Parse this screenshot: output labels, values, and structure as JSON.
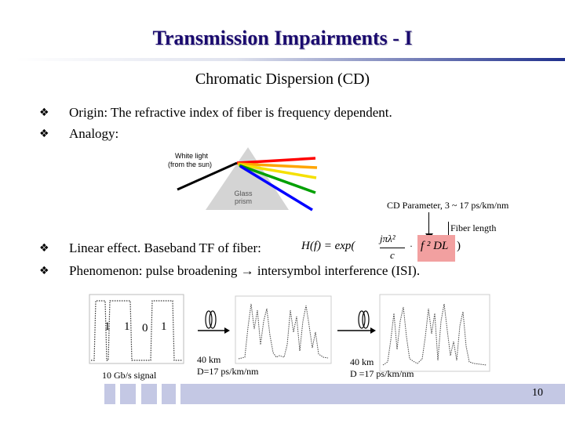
{
  "slide": {
    "title": "Transmission Impairments - I",
    "subtitle": "Chromatic Dispersion (CD)",
    "bullets": [
      "Origin: The refractive index of fiber is frequency dependent.",
      "Analogy:",
      "Linear effect. Baseband TF of fiber:",
      "Phenomenon: pulse broadening → intersymbol interference (ISI)."
    ],
    "bullet_icon": "diamond-bullet-icon",
    "page_number": "10"
  },
  "prism_figure": {
    "label_top": "White light",
    "label_top2": "(from the sun)",
    "prism_label": "Glass",
    "prism_label2": "prism",
    "ray_colors": [
      "#ff0000",
      "#ffa500",
      "#ffff00",
      "#00a000",
      "#0000ff"
    ]
  },
  "formula": {
    "cd_parameter_label": "CD Parameter, 3 ~ 17 ps/km/nm",
    "fiber_length_label": "Fiber length",
    "equation_lhs": "H(f) = exp(",
    "equation_num": "jπλ²",
    "equation_den": "c",
    "equation_highlight": "f ² DL",
    "equation_close": ")",
    "highlight_color": "#f2a0a0"
  },
  "signal_figure": {
    "bits": [
      "1",
      "1",
      "0",
      "1"
    ],
    "signal_label": "10 Gb/s signal",
    "span1_distance": "40 km",
    "span1_dispersion": "D=17 ps/km/nm",
    "span2_distance": "40 km",
    "span2_dispersion": "D =17 ps/km/nm"
  }
}
